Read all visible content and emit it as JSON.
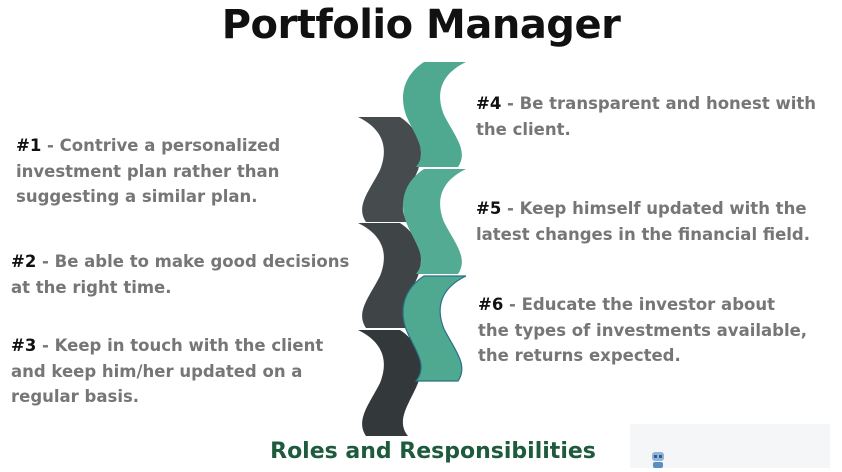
{
  "title": "Portfolio Manager",
  "subtitle": "Roles and Responsibilities",
  "items": [
    {
      "num": "#1",
      "text": " - Contrive a personalized investment plan rather than suggesting a similar plan."
    },
    {
      "num": "#2",
      "text": " - Be able to make good decisions at the right time."
    },
    {
      "num": "#3",
      "text": " - Keep in touch with the client and keep him/her updated on a regular basis."
    },
    {
      "num": "#4",
      "text": " - Be transparent and honest with the client."
    },
    {
      "num": "#5",
      "text": " - Keep himself updated with the latest changes in the financial field."
    },
    {
      "num": "#6",
      "text": " - Educate the investor about the types of investments available, the returns expected."
    }
  ],
  "colors": {
    "left_column": "#464b4d",
    "left_column_dark": "#33383a",
    "right_column": "#4fa990",
    "right_outline": "#2a6f8a",
    "subtitle": "#1e5a3c"
  },
  "icons": {
    "watermark": "robot-icon"
  }
}
